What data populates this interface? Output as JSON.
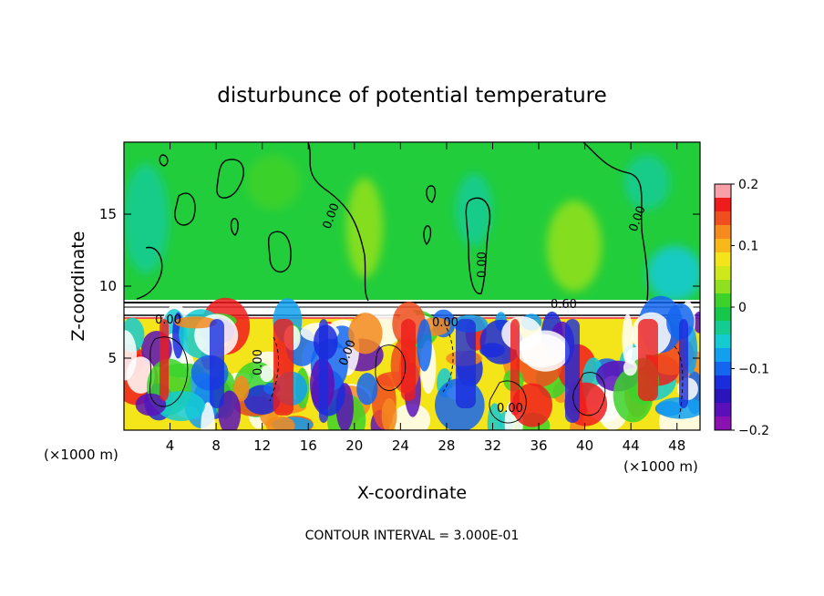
{
  "chart_data": {
    "type": "heatmap",
    "title": "disturbunce of potential temperature",
    "xlabel": "X-coordinate",
    "ylabel": "Z-coordinate",
    "x_unit_left": "(×1000 m)",
    "x_unit_right": "(×1000 m)",
    "xlim": [
      0,
      50
    ],
    "ylim": [
      0,
      20
    ],
    "x_ticks": [
      4,
      8,
      12,
      16,
      20,
      24,
      28,
      32,
      36,
      40,
      44,
      48
    ],
    "y_ticks": [
      5,
      10,
      15
    ],
    "colorbar": {
      "ticks": [
        "0.2",
        "0.1",
        "0",
        "−0.1",
        "−0.2"
      ],
      "tick_values": [
        0.2,
        0.1,
        0,
        -0.1,
        -0.2
      ],
      "range": [
        -0.2,
        0.2
      ],
      "colors": [
        "#f7a0a8",
        "#ee1c1c",
        "#f04e1e",
        "#f58a1e",
        "#f9b81a",
        "#f4e41a",
        "#cfe81a",
        "#8fe01e",
        "#3cd22a",
        "#15c84a",
        "#14cc92",
        "#14cbd2",
        "#12a0ee",
        "#1466f0",
        "#1a2cdc",
        "#2a14bc",
        "#5a10b8",
        "#8a12b0"
      ]
    },
    "contour_labels": [
      "0.00",
      "0.00",
      "0.00",
      "0.00",
      "0.60",
      "0.00",
      "0.00",
      "0.00",
      "0.00"
    ],
    "contour_interval_text": "CONTOUR INTERVAL = 3.000E-01"
  }
}
